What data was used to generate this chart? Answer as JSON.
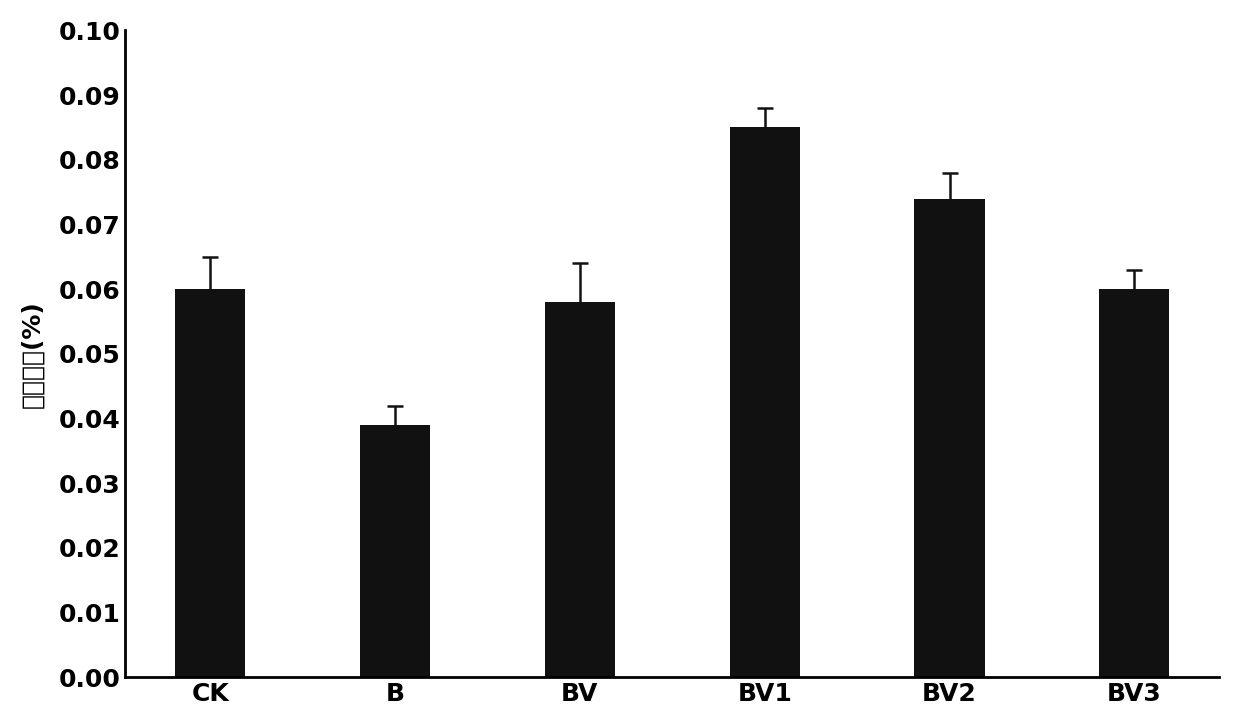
{
  "categories": [
    "CK",
    "B",
    "BV",
    "BV1",
    "BV2",
    "BV3"
  ],
  "values": [
    0.06,
    0.039,
    0.058,
    0.085,
    0.074,
    0.06
  ],
  "errors": [
    0.005,
    0.003,
    0.006,
    0.003,
    0.004,
    0.003
  ],
  "bar_color": "#111111",
  "bar_width": 0.38,
  "ylabel": "社市指数(%)",
  "ylim": [
    0,
    0.1
  ],
  "yticks": [
    0.0,
    0.01,
    0.02,
    0.03,
    0.04,
    0.05,
    0.06,
    0.07,
    0.08,
    0.09,
    0.1
  ],
  "background_color": "#ffffff",
  "tick_fontsize": 18,
  "ylabel_fontsize": 18,
  "figsize": [
    12.4,
    7.27
  ],
  "dpi": 100
}
